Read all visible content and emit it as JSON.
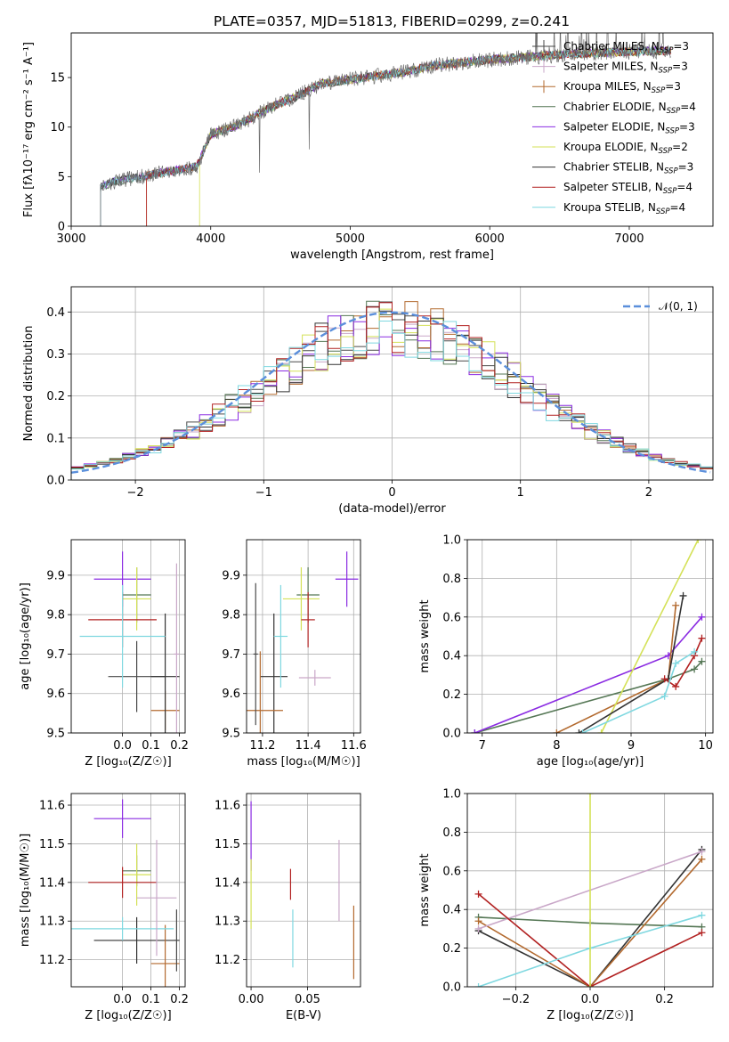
{
  "figure_title": "PLATE=0357, MJD=51813, FIBERID=0299, z=0.241",
  "models": [
    {
      "name": "Chabrier MILES",
      "nssp": "3",
      "color": "#4a4a4a"
    },
    {
      "name": "Salpeter MILES",
      "nssp": "3",
      "color": "#c9a7c8"
    },
    {
      "name": "Kroupa MILES",
      "nssp": "3",
      "color": "#b36a2f"
    },
    {
      "name": "Chabrier ELODIE",
      "nssp": "4",
      "color": "#557755"
    },
    {
      "name": "Salpeter ELODIE",
      "nssp": "3",
      "color": "#8a2be2"
    },
    {
      "name": "Kroupa ELODIE",
      "nssp": "2",
      "color": "#d4e157"
    },
    {
      "name": "Chabrier STELIB",
      "nssp": "3",
      "color": "#333333"
    },
    {
      "name": "Salpeter STELIB",
      "nssp": "4",
      "color": "#b22222"
    },
    {
      "name": "Kroupa STELIB",
      "nssp": "4",
      "color": "#7fd8e0"
    }
  ],
  "nssp_label": "N",
  "nssp_sub": "SSP",
  "chart_data": [
    {
      "id": "spectrum",
      "type": "line",
      "xlabel": "wavelength [Angstrom, rest frame]",
      "ylabel": "Flux [fλ10⁻¹⁷ erg cm⁻² s⁻¹ A⁻¹]",
      "xlim": [
        3000,
        7600
      ],
      "ylim": [
        0,
        19.5
      ],
      "xticks": [
        3000,
        4000,
        5000,
        6000,
        7000
      ],
      "yticks": [
        0,
        5,
        10,
        15
      ],
      "grid": false,
      "legend": "top-right",
      "continuum_x": [
        3210,
        3300,
        3500,
        3700,
        3900,
        4000,
        4200,
        4400,
        4600,
        4800,
        5000,
        5200,
        5400,
        5600,
        5800,
        6000,
        6200,
        6400,
        6600,
        6800,
        7000,
        7200,
        7300
      ],
      "continuum_y": [
        3.8,
        4.5,
        5.0,
        5.5,
        6.0,
        9.3,
        10.2,
        11.8,
        13.0,
        14.4,
        14.8,
        15.2,
        15.6,
        16.2,
        16.5,
        16.8,
        17.0,
        17.2,
        17.4,
        17.5,
        17.6,
        17.7,
        17.7
      ],
      "model_start_x": [
        3210,
        3210,
        3540,
        3210,
        3210,
        3920,
        3210,
        3540,
        3210
      ]
    },
    {
      "id": "residuals",
      "type": "line",
      "xlabel": "(data-model)/error",
      "ylabel": "Normed distribution",
      "xlim": [
        -2.5,
        2.5
      ],
      "ylim": [
        0,
        0.46
      ],
      "xticks": [
        -2,
        -1,
        0,
        1,
        2
      ],
      "yticks": [
        0.0,
        0.1,
        0.2,
        0.3,
        0.4
      ],
      "grid": true,
      "legend": "top-right",
      "legend_label": "𝒩(0, 1)",
      "gauss_color": "#5b8fdb"
    },
    {
      "id": "age-vs-Z",
      "type": "scatter",
      "xlabel": "Z [log₁₀(Z/Z☉)]",
      "ylabel": "age  [log₁₀(age/yr)]",
      "xlim": [
        -0.18,
        0.22
      ],
      "ylim": [
        9.5,
        9.99
      ],
      "xticks": [
        0.0,
        0.1,
        0.2
      ],
      "yticks": [
        9.5,
        9.6,
        9.7,
        9.8,
        9.9
      ],
      "grid": true,
      "points": [
        {
          "model": 0,
          "x": 0.05,
          "y": 9.643,
          "xe": 0.1,
          "ye": 0.09
        },
        {
          "model": 2,
          "x": 0.15,
          "y": 9.557,
          "xe": 0.05,
          "ye": 0.05
        },
        {
          "model": 3,
          "x": 0.05,
          "y": 9.85,
          "xe": 0.05,
          "ye": 0.07
        },
        {
          "model": 4,
          "x": 0.0,
          "y": 9.89,
          "xe": 0.1,
          "ye": 0.07
        },
        {
          "model": 5,
          "x": 0.05,
          "y": 9.84,
          "xe": 0.05,
          "ye": 0.08
        },
        {
          "model": 6,
          "x": 0.15,
          "y": 9.643,
          "xe": 0.05,
          "ye": 0.16
        },
        {
          "model": 7,
          "x": 0.0,
          "y": 9.787,
          "xe": 0.12,
          "ye": 0.07
        },
        {
          "model": 8,
          "x": 0.0,
          "y": 9.745,
          "xe": 0.15,
          "ye": 0.13
        },
        {
          "model": 1,
          "x": 0.19,
          "y": 9.7,
          "xe": 0.01,
          "ye": 0.23
        }
      ]
    },
    {
      "id": "age-vs-mass",
      "type": "scatter",
      "xlabel": "mass [log₁₀(M/M☉)]",
      "ylabel": "",
      "xlim": [
        11.13,
        11.63
      ],
      "ylim": [
        9.5,
        9.99
      ],
      "xticks": [
        11.2,
        11.4,
        11.6
      ],
      "yticks": [
        9.5,
        9.6,
        9.7,
        9.8,
        9.9
      ],
      "grid": true,
      "points": [
        {
          "model": 6,
          "x": 11.25,
          "y": 9.643,
          "xe": 0.06,
          "ye": 0.16
        },
        {
          "model": 2,
          "x": 11.19,
          "y": 9.557,
          "xe": 0.1,
          "ye": 0.15
        },
        {
          "model": 3,
          "x": 11.4,
          "y": 9.85,
          "xe": 0.05,
          "ye": 0.07
        },
        {
          "model": 4,
          "x": 11.57,
          "y": 9.89,
          "xe": 0.05,
          "ye": 0.07
        },
        {
          "model": 5,
          "x": 11.37,
          "y": 9.84,
          "xe": 0.08,
          "ye": 0.08
        },
        {
          "model": 7,
          "x": 11.4,
          "y": 9.787,
          "xe": 0.03,
          "ye": 0.07
        },
        {
          "model": 8,
          "x": 11.28,
          "y": 9.745,
          "xe": 0.03,
          "ye": 0.13
        },
        {
          "model": 1,
          "x": 11.43,
          "y": 9.64,
          "xe": 0.07,
          "ye": 0.02
        },
        {
          "model": 0,
          "x": 11.17,
          "y": 9.7,
          "xe": 0.01,
          "ye": 0.18
        }
      ]
    },
    {
      "id": "weight-vs-age",
      "type": "line",
      "xlabel": "age  [log₁₀(age/yr)]",
      "ylabel": "mass weight",
      "xlim": [
        6.8,
        10.1
      ],
      "ylim": [
        0,
        1.0
      ],
      "xticks": [
        7,
        8,
        9,
        10
      ],
      "yticks": [
        0.0,
        0.2,
        0.4,
        0.6,
        0.8,
        1.0
      ],
      "grid": true,
      "series": [
        {
          "model": 3,
          "x": [
            6.9,
            9.5,
            9.85,
            9.95
          ],
          "y": [
            0.0,
            0.28,
            0.33,
            0.37
          ]
        },
        {
          "model": 4,
          "x": [
            6.9,
            9.5,
            9.95
          ],
          "y": [
            0.0,
            0.4,
            0.6
          ]
        },
        {
          "model": 2,
          "x": [
            8.0,
            9.5,
            9.6
          ],
          "y": [
            0.0,
            0.28,
            0.66
          ]
        },
        {
          "model": 5,
          "x": [
            8.6,
            9.9
          ],
          "y": [
            0.0,
            1.0
          ]
        },
        {
          "model": 6,
          "x": [
            8.3,
            9.5,
            9.7
          ],
          "y": [
            0.0,
            0.28,
            0.71
          ]
        },
        {
          "model": 7,
          "x": [
            9.45,
            9.6,
            9.85,
            9.95
          ],
          "y": [
            0.28,
            0.24,
            0.4,
            0.49
          ]
        },
        {
          "model": 8,
          "x": [
            8.35,
            9.45,
            9.6,
            9.85
          ],
          "y": [
            0.0,
            0.19,
            0.36,
            0.42
          ]
        }
      ]
    },
    {
      "id": "mass-vs-Z",
      "type": "scatter",
      "xlabel": "Z [log₁₀(Z/Z☉)]",
      "ylabel": "mass [log₁₀(M/M☉)]",
      "xlim": [
        -0.18,
        0.22
      ],
      "ylim": [
        11.13,
        11.63
      ],
      "xticks": [
        0.0,
        0.1,
        0.2
      ],
      "yticks": [
        11.2,
        11.3,
        11.4,
        11.5,
        11.6
      ],
      "grid": true,
      "points": [
        {
          "model": 6,
          "x": 0.05,
          "y": 11.25,
          "xe": 0.15,
          "ye": 0.06
        },
        {
          "model": 2,
          "x": 0.15,
          "y": 11.19,
          "xe": 0.05,
          "ye": 0.1
        },
        {
          "model": 3,
          "x": 0.05,
          "y": 11.43,
          "xe": 0.05,
          "ye": 0.04
        },
        {
          "model": 4,
          "x": 0.0,
          "y": 11.565,
          "xe": 0.1,
          "ye": 0.05
        },
        {
          "model": 5,
          "x": 0.05,
          "y": 11.42,
          "xe": 0.05,
          "ye": 0.08
        },
        {
          "model": 7,
          "x": 0.0,
          "y": 11.4,
          "xe": 0.12,
          "ye": 0.04
        },
        {
          "model": 8,
          "x": 0.0,
          "y": 11.28,
          "xe": 0.18,
          "ye": 0.03
        },
        {
          "model": 1,
          "x": 0.12,
          "y": 11.36,
          "xe": 0.07,
          "ye": 0.15
        },
        {
          "model": 0,
          "x": 0.19,
          "y": 11.25,
          "xe": 0.01,
          "ye": 0.08
        }
      ]
    },
    {
      "id": "mass-vs-EBV",
      "type": "scatter",
      "xlabel": "E(B-V)",
      "ylabel": "",
      "xlim": [
        -0.004,
        0.097
      ],
      "ylim": [
        11.13,
        11.63
      ],
      "xticks": [
        0.0,
        0.05
      ],
      "yticks": [
        11.2,
        11.3,
        11.4,
        11.5,
        11.6
      ],
      "grid": true,
      "points": [
        {
          "model": 4,
          "x": 0.0,
          "y": 11.52,
          "xe": 0,
          "ye": 0.09
        },
        {
          "model": 5,
          "x": 0.0,
          "y": 11.37,
          "xe": 0,
          "ye": 0.09
        },
        {
          "model": 7,
          "x": 0.035,
          "y": 11.395,
          "xe": 0,
          "ye": 0.04
        },
        {
          "model": 8,
          "x": 0.037,
          "y": 11.255,
          "xe": 0,
          "ye": 0.075
        },
        {
          "model": 1,
          "x": 0.078,
          "y": 11.405,
          "xe": 0,
          "ye": 0.105
        },
        {
          "model": 2,
          "x": 0.091,
          "y": 11.245,
          "xe": 0,
          "ye": 0.095
        }
      ]
    },
    {
      "id": "weight-vs-Z",
      "type": "line",
      "xlabel": "Z [log₁₀(Z/Z☉)]",
      "ylabel": "mass weight",
      "xlim": [
        -0.33,
        0.33
      ],
      "ylim": [
        0,
        1.0
      ],
      "xticks": [
        -0.2,
        0.0,
        0.2
      ],
      "yticks": [
        0.0,
        0.2,
        0.4,
        0.6,
        0.8,
        1.0
      ],
      "grid": true,
      "series": [
        {
          "model": 3,
          "x": [
            -0.3,
            0.0,
            0.3
          ],
          "y": [
            0.36,
            0.33,
            0.31
          ]
        },
        {
          "model": 6,
          "x": [
            -0.3,
            0.0,
            0.3
          ],
          "y": [
            0.29,
            0.0,
            0.71
          ]
        },
        {
          "model": 2,
          "x": [
            -0.3,
            0.0,
            0.3
          ],
          "y": [
            0.34,
            0.0,
            0.66
          ]
        },
        {
          "model": 1,
          "x": [
            -0.3,
            0.3
          ],
          "y": [
            0.3,
            0.7
          ]
        },
        {
          "model": 7,
          "x": [
            -0.3,
            0.0,
            0.3
          ],
          "y": [
            0.48,
            0.0,
            0.28
          ]
        },
        {
          "model": 8,
          "x": [
            -0.3,
            0.0,
            0.3
          ],
          "y": [
            0.0,
            0.2,
            0.37
          ]
        },
        {
          "model": 5,
          "x": [
            0.0,
            0.0
          ],
          "y": [
            0.0,
            1.0
          ]
        }
      ]
    }
  ]
}
